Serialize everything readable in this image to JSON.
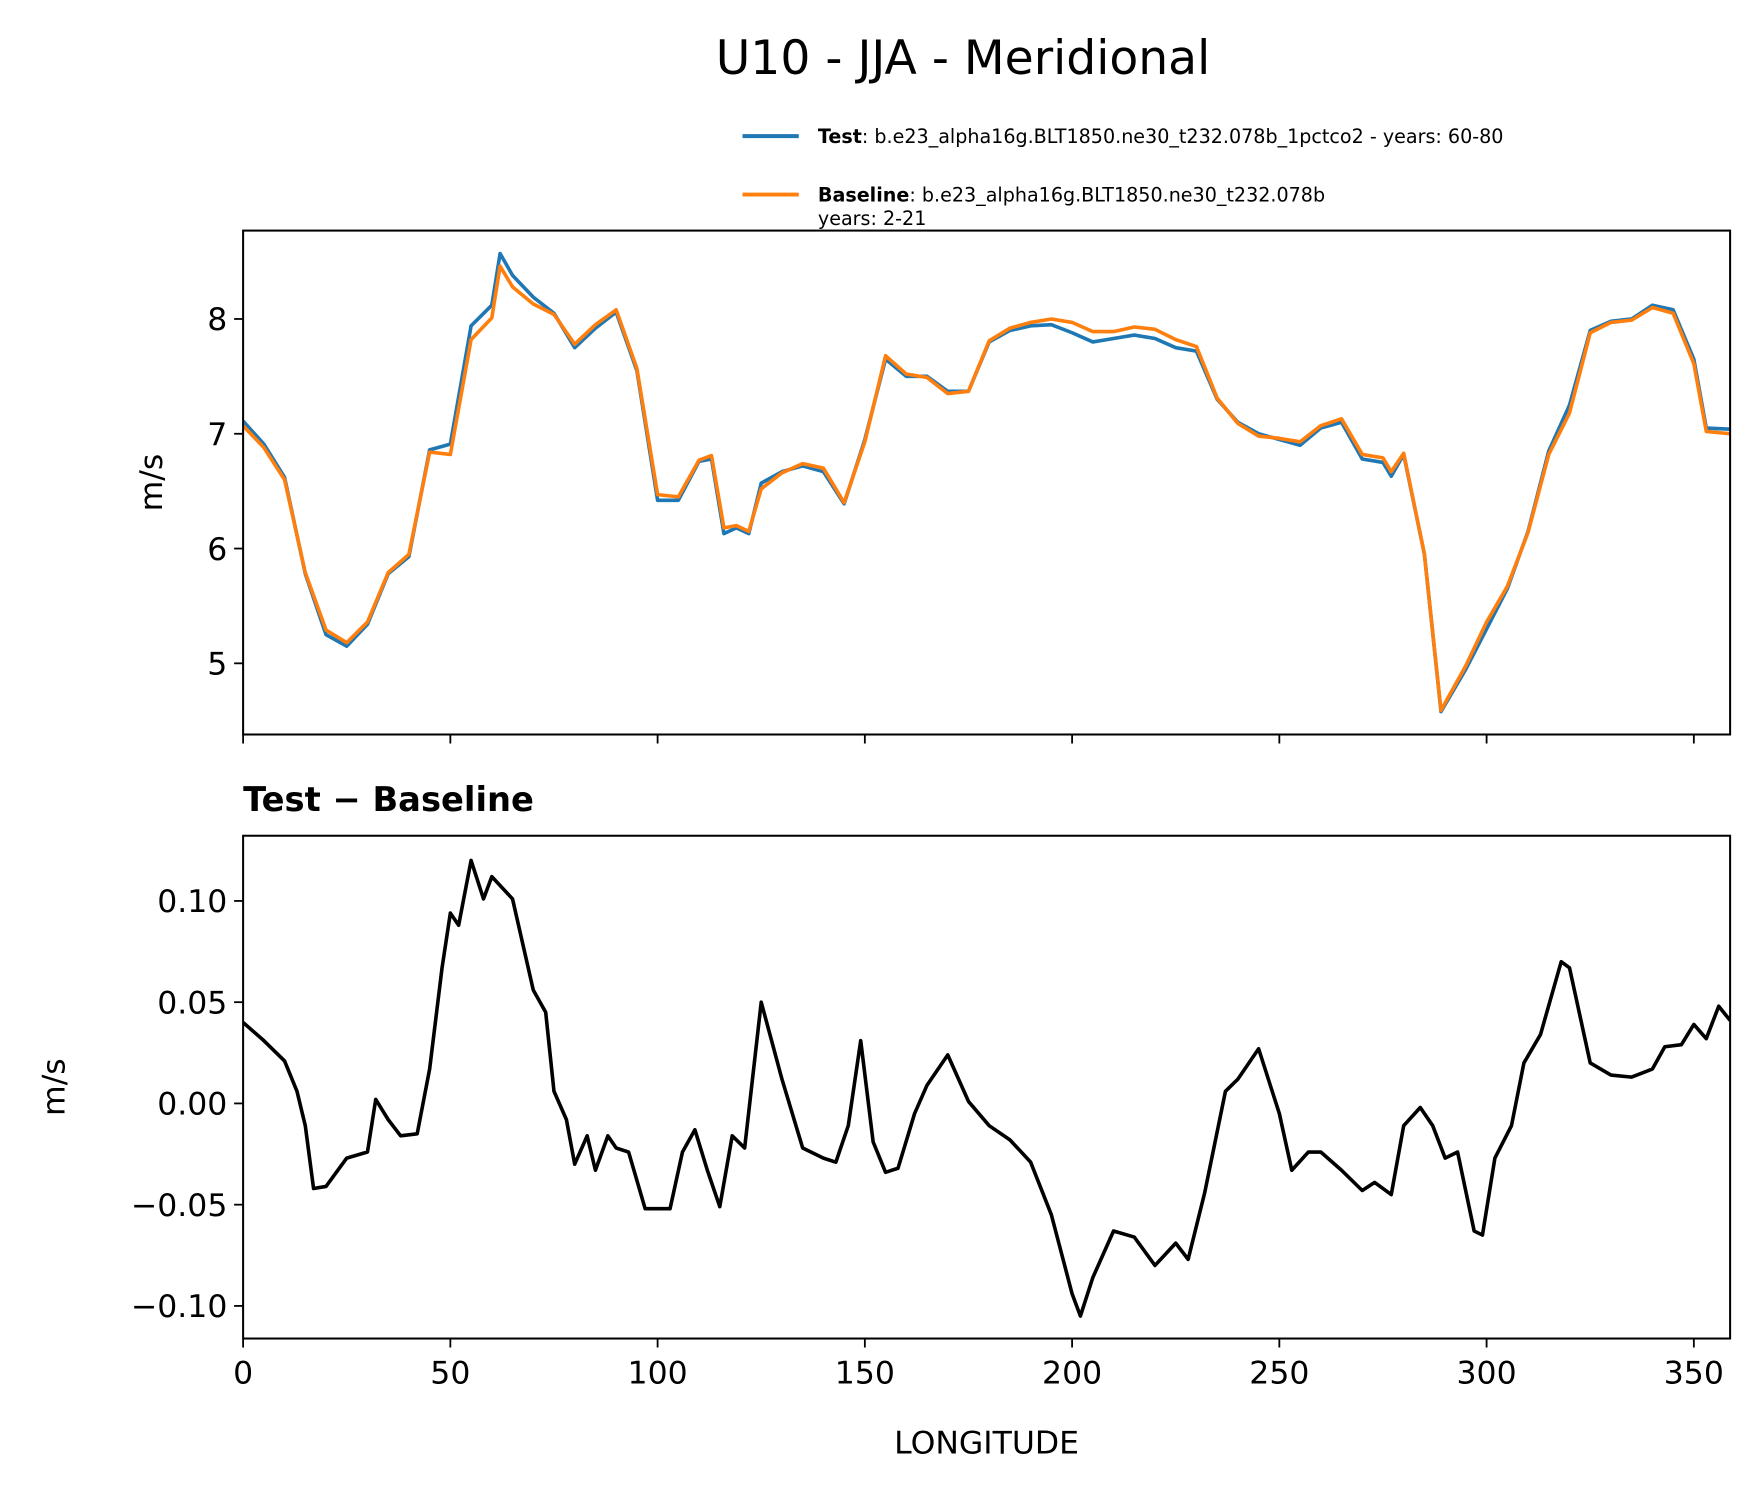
{
  "title": "U10 - JJA - Meridional",
  "chart_data": [
    {
      "type": "line",
      "ylabel": "m/s",
      "legend": "upper right",
      "x": [
        0,
        5,
        10,
        15,
        20,
        25,
        30,
        35,
        40,
        45,
        50,
        55,
        60,
        62,
        65,
        70,
        75,
        80,
        85,
        90,
        95,
        100,
        105,
        110,
        113,
        116,
        119,
        122,
        125,
        130,
        135,
        140,
        145,
        150,
        155,
        160,
        165,
        170,
        175,
        180,
        185,
        190,
        195,
        200,
        205,
        210,
        215,
        220,
        225,
        230,
        235,
        240,
        245,
        250,
        255,
        260,
        265,
        270,
        275,
        277,
        280,
        285,
        289,
        295,
        300,
        305,
        310,
        315,
        320,
        325,
        330,
        335,
        340,
        345,
        350,
        353,
        358.75
      ],
      "series": [
        {
          "name": "Test",
          "description": [
            ": b.e23_alpha16g.BLT1850.ne30_t232.078b_1pctco2 - years: 60-80"
          ],
          "color": "#1f77b4",
          "values": [
            7.11,
            6.91,
            6.62,
            5.78,
            5.25,
            5.15,
            5.34,
            5.78,
            5.93,
            6.86,
            6.91,
            7.94,
            8.12,
            8.57,
            8.38,
            8.19,
            8.05,
            7.75,
            7.92,
            8.06,
            7.55,
            6.42,
            6.42,
            6.76,
            6.78,
            6.13,
            6.18,
            6.13,
            6.57,
            6.67,
            6.72,
            6.67,
            6.39,
            6.95,
            7.65,
            7.5,
            7.5,
            7.37,
            7.37,
            7.8,
            7.9,
            7.94,
            7.95,
            7.88,
            7.8,
            7.83,
            7.86,
            7.83,
            7.75,
            7.72,
            7.3,
            7.1,
            7.0,
            6.95,
            6.9,
            7.05,
            7.1,
            6.78,
            6.75,
            6.63,
            6.82,
            5.95,
            4.58,
            4.95,
            5.3,
            5.65,
            6.15,
            6.85,
            7.25,
            7.9,
            7.98,
            8.0,
            8.12,
            8.08,
            7.65,
            7.05,
            7.04
          ]
        },
        {
          "name": "Baseline",
          "description": [
            ": b.e23_alpha16g.BLT1850.ne30_t232.078b",
            "years: 2-21"
          ],
          "color": "#ff7f0e",
          "values": [
            7.07,
            6.88,
            6.6,
            5.79,
            5.29,
            5.18,
            5.36,
            5.79,
            5.95,
            6.84,
            6.82,
            7.82,
            8.01,
            8.46,
            8.28,
            8.13,
            8.04,
            7.78,
            7.95,
            8.08,
            7.57,
            6.47,
            6.45,
            6.77,
            6.81,
            6.18,
            6.2,
            6.15,
            6.52,
            6.66,
            6.74,
            6.7,
            6.4,
            6.93,
            7.68,
            7.52,
            7.49,
            7.35,
            7.37,
            7.81,
            7.92,
            7.97,
            8.0,
            7.97,
            7.89,
            7.89,
            7.93,
            7.91,
            7.82,
            7.76,
            7.31,
            7.09,
            6.98,
            6.96,
            6.93,
            7.07,
            7.13,
            6.82,
            6.79,
            6.67,
            6.83,
            5.95,
            4.59,
            4.98,
            5.36,
            5.67,
            6.14,
            6.82,
            7.18,
            7.88,
            7.97,
            7.99,
            8.1,
            8.05,
            7.61,
            7.02,
            7.0
          ]
        }
      ],
      "xlim": [
        0,
        358.75
      ],
      "xticks": [
        0,
        50,
        100,
        150,
        200,
        250,
        300,
        350
      ],
      "show_xtick_labels": false,
      "ylim": [
        4.38,
        8.77
      ],
      "yticks": [
        5,
        6,
        7,
        8
      ]
    },
    {
      "type": "line",
      "title": "Test − Baseline",
      "ylabel": "m/s",
      "xlabel": "LONGITUDE",
      "x": [
        0,
        5,
        10,
        13,
        15,
        17,
        20,
        25,
        30,
        32,
        35,
        38,
        42,
        45,
        48,
        50,
        52,
        55,
        58,
        60,
        65,
        70,
        73,
        75,
        78,
        80,
        83,
        85,
        88,
        90,
        93,
        97,
        100,
        103,
        106,
        109,
        112,
        115,
        118,
        121,
        125,
        130,
        135,
        140,
        143,
        146,
        149,
        152,
        155,
        158,
        162,
        165,
        170,
        175,
        180,
        185,
        190,
        195,
        200,
        202,
        205,
        210,
        215,
        220,
        225,
        228,
        232,
        237,
        240,
        245,
        250,
        253,
        257,
        260,
        265,
        270,
        273,
        277,
        280,
        284,
        287,
        290,
        293,
        297,
        299,
        302,
        306,
        309,
        313,
        318,
        320,
        325,
        330,
        335,
        340,
        343,
        347,
        350,
        353,
        356,
        358.75
      ],
      "series": [
        {
          "name": "Test − Baseline",
          "color": "#000000",
          "values": [
            0.04,
            0.031,
            0.021,
            0.006,
            -0.011,
            -0.042,
            -0.041,
            -0.027,
            -0.024,
            0.002,
            -0.008,
            -0.016,
            -0.015,
            0.017,
            0.067,
            0.094,
            0.088,
            0.12,
            0.101,
            0.112,
            0.101,
            0.056,
            0.045,
            0.006,
            -0.008,
            -0.03,
            -0.016,
            -0.033,
            -0.016,
            -0.022,
            -0.024,
            -0.052,
            -0.052,
            -0.052,
            -0.024,
            -0.013,
            -0.033,
            -0.051,
            -0.016,
            -0.022,
            0.05,
            0.012,
            -0.022,
            -0.027,
            -0.029,
            -0.011,
            0.031,
            -0.019,
            -0.034,
            -0.032,
            -0.005,
            0.009,
            0.024,
            0.001,
            -0.011,
            -0.018,
            -0.029,
            -0.055,
            -0.094,
            -0.105,
            -0.086,
            -0.063,
            -0.066,
            -0.08,
            -0.069,
            -0.077,
            -0.044,
            0.006,
            0.012,
            0.027,
            -0.005,
            -0.033,
            -0.024,
            -0.024,
            -0.033,
            -0.043,
            -0.039,
            -0.045,
            -0.011,
            -0.002,
            -0.011,
            -0.027,
            -0.024,
            -0.063,
            -0.065,
            -0.027,
            -0.011,
            0.02,
            0.034,
            0.07,
            0.067,
            0.02,
            0.014,
            0.013,
            0.017,
            0.028,
            0.029,
            0.039,
            0.032,
            0.048,
            0.041
          ]
        }
      ],
      "xlim": [
        0,
        358.75
      ],
      "xticks": [
        0,
        50,
        100,
        150,
        200,
        250,
        300,
        350
      ],
      "show_xtick_labels": true,
      "ylim": [
        -0.1161,
        0.1322
      ],
      "yticks": [
        {
          "value": -0.1,
          "label": "−0.10"
        },
        {
          "value": -0.05,
          "label": "−0.05"
        },
        {
          "value": 0,
          "label": "0.00"
        },
        {
          "value": 0.05,
          "label": "0.05"
        },
        {
          "value": 0.1,
          "label": "0.10"
        }
      ]
    }
  ]
}
